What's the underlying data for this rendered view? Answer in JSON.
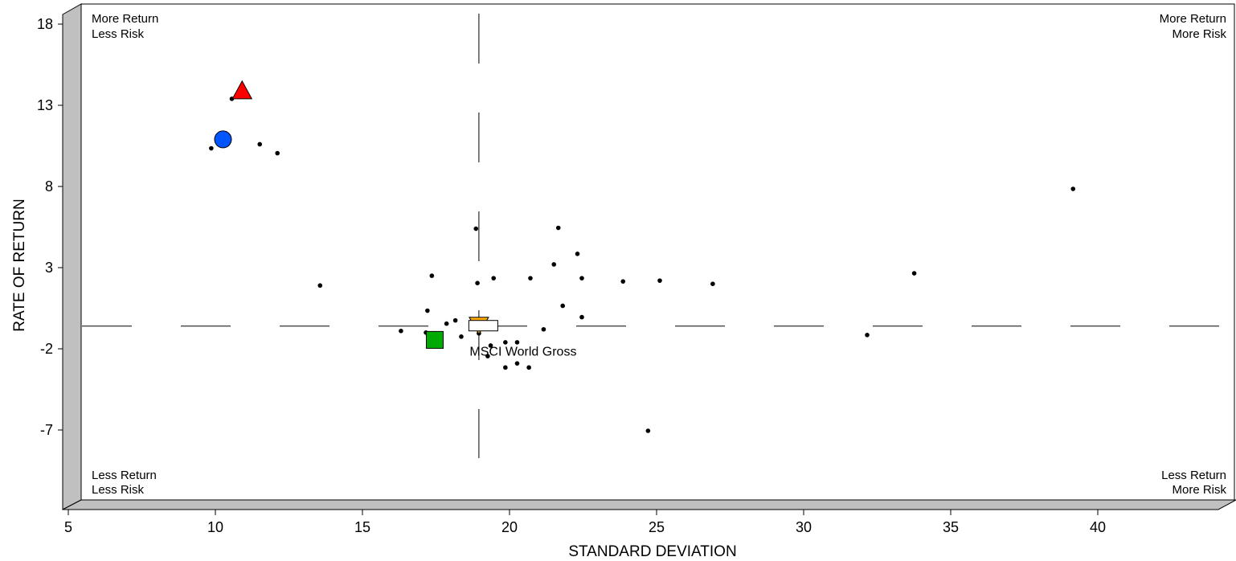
{
  "chart_data": {
    "type": "scatter",
    "xlabel": "STANDARD DEVIATION",
    "ylabel": "RATE OF RETURN",
    "xlim": [
      5,
      44.3
    ],
    "ylim": [
      -11.5,
      19.6
    ],
    "x_ticks": [
      5,
      10,
      15,
      20,
      25,
      30,
      35,
      40
    ],
    "y_ticks": [
      18,
      13,
      8,
      3,
      -2,
      -7
    ],
    "grid": false,
    "reference_lines": {
      "x": 18.85,
      "y": -0.6
    },
    "corner_labels": {
      "top_left": [
        "More Return",
        "Less Risk"
      ],
      "top_right": [
        "More Return",
        "More Risk"
      ],
      "bottom_left": [
        "Less Return",
        "Less Risk"
      ],
      "bottom_right": [
        "Less Return",
        "More Risk"
      ]
    },
    "highlighted_points": [
      {
        "marker": "triangle-up",
        "color": "#ff0000",
        "x": 10.8,
        "y": 13.9
      },
      {
        "marker": "circle",
        "color": "#0055ff",
        "x": 10.15,
        "y": 10.9
      },
      {
        "marker": "square",
        "color": "#00aa00",
        "x": 17.35,
        "y": -1.45
      },
      {
        "marker": "triangle-down",
        "color": "#ffaa00",
        "x": 18.85,
        "y": -0.55
      },
      {
        "marker": "rectangle",
        "color": "#ffffff",
        "x": 19.0,
        "y": -0.6,
        "label": "MSCI World Gross"
      }
    ],
    "points": [
      {
        "x": 10.45,
        "y": 13.4
      },
      {
        "x": 9.75,
        "y": 10.35
      },
      {
        "x": 11.4,
        "y": 10.6
      },
      {
        "x": 12.0,
        "y": 10.05
      },
      {
        "x": 13.45,
        "y": 1.9
      },
      {
        "x": 16.2,
        "y": -0.9
      },
      {
        "x": 17.05,
        "y": -1.0
      },
      {
        "x": 17.1,
        "y": 0.35
      },
      {
        "x": 17.25,
        "y": 2.5
      },
      {
        "x": 17.75,
        "y": -0.45
      },
      {
        "x": 18.05,
        "y": -0.25
      },
      {
        "x": 18.25,
        "y": -1.25
      },
      {
        "x": 18.75,
        "y": 5.4
      },
      {
        "x": 18.8,
        "y": 2.05
      },
      {
        "x": 18.85,
        "y": -1.05
      },
      {
        "x": 19.15,
        "y": -2.45
      },
      {
        "x": 19.25,
        "y": -1.8
      },
      {
        "x": 19.35,
        "y": 2.35
      },
      {
        "x": 19.75,
        "y": -1.6
      },
      {
        "x": 19.75,
        "y": -3.15
      },
      {
        "x": 20.15,
        "y": -1.6
      },
      {
        "x": 20.15,
        "y": -2.9
      },
      {
        "x": 20.55,
        "y": -3.15
      },
      {
        "x": 20.6,
        "y": 2.35
      },
      {
        "x": 21.05,
        "y": -0.8
      },
      {
        "x": 21.4,
        "y": 3.2
      },
      {
        "x": 21.55,
        "y": 5.45
      },
      {
        "x": 21.7,
        "y": 0.65
      },
      {
        "x": 22.2,
        "y": 3.85
      },
      {
        "x": 22.35,
        "y": 2.35
      },
      {
        "x": 22.35,
        "y": -0.05
      },
      {
        "x": 23.75,
        "y": 2.15
      },
      {
        "x": 24.6,
        "y": -7.05
      },
      {
        "x": 25.0,
        "y": 2.2
      },
      {
        "x": 26.8,
        "y": 2.0
      },
      {
        "x": 32.05,
        "y": -1.15
      },
      {
        "x": 33.65,
        "y": 2.65
      },
      {
        "x": 39.05,
        "y": 7.85
      }
    ]
  }
}
